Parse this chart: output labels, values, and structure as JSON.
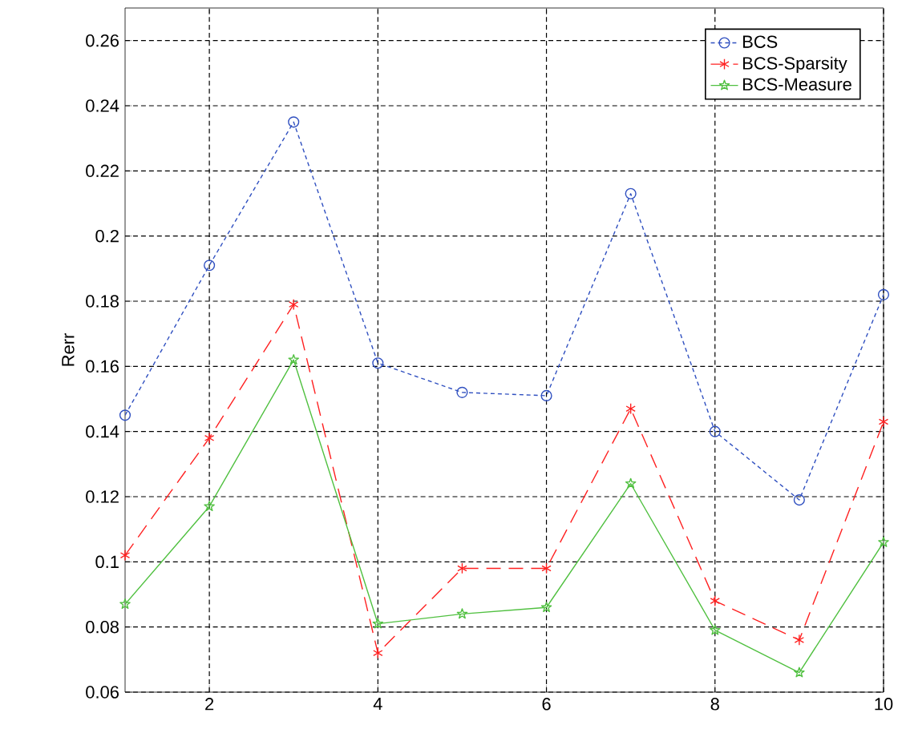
{
  "chart_data": {
    "type": "line",
    "ylabel": "Rerr",
    "x": [
      1,
      2,
      3,
      4,
      5,
      6,
      7,
      8,
      9,
      10
    ],
    "xlim": [
      1,
      10
    ],
    "ylim": [
      0.06,
      0.27
    ],
    "xticks": [
      2,
      4,
      6,
      8,
      10
    ],
    "yticks": [
      0.06,
      0.08,
      0.1,
      0.12,
      0.14,
      0.16,
      0.18,
      0.2,
      0.22,
      0.24,
      0.26
    ],
    "grid": true,
    "legend": "top right",
    "series": [
      {
        "name": "BCS",
        "color": "#3050c0",
        "marker": "circle",
        "line_style": "dotted",
        "values": [
          0.145,
          0.191,
          0.235,
          0.161,
          0.152,
          0.151,
          0.213,
          0.14,
          0.119,
          0.182
        ]
      },
      {
        "name": "BCS-Sparsity",
        "color": "#ff2020",
        "marker": "cross",
        "line_style": "dashed",
        "values": [
          0.102,
          0.138,
          0.179,
          0.072,
          0.098,
          0.098,
          0.147,
          0.088,
          0.076,
          0.143
        ]
      },
      {
        "name": "BCS-Measure",
        "color": "#50c040",
        "marker": "star",
        "line_style": "solid",
        "values": [
          0.087,
          0.117,
          0.162,
          0.081,
          0.084,
          0.086,
          0.124,
          0.079,
          0.066,
          0.106
        ]
      }
    ]
  }
}
